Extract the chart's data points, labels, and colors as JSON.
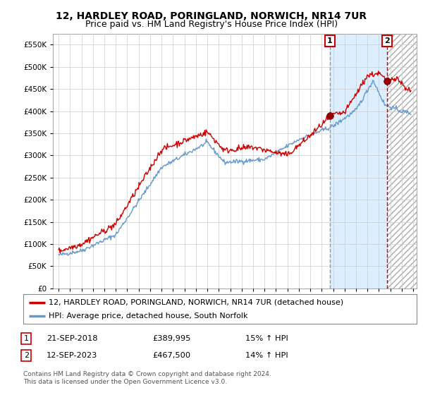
{
  "title": "12, HARDLEY ROAD, PORINGLAND, NORWICH, NR14 7UR",
  "subtitle": "Price paid vs. HM Land Registry's House Price Index (HPI)",
  "yticks": [
    0,
    50000,
    100000,
    150000,
    200000,
    250000,
    300000,
    350000,
    400000,
    450000,
    500000,
    550000
  ],
  "ylim": [
    0,
    575000
  ],
  "xlim_start": 1994.5,
  "xlim_end": 2026.3,
  "xticks": [
    1995,
    1996,
    1997,
    1998,
    1999,
    2000,
    2001,
    2002,
    2003,
    2004,
    2005,
    2006,
    2007,
    2008,
    2009,
    2010,
    2011,
    2012,
    2013,
    2014,
    2015,
    2016,
    2017,
    2018,
    2019,
    2020,
    2021,
    2022,
    2023,
    2024,
    2025,
    2026
  ],
  "background_color": "#ffffff",
  "grid_color": "#cccccc",
  "red_line_color": "#cc0000",
  "blue_line_color": "#6699cc",
  "shade_color": "#ddeeff",
  "sale1_x": 2018.72,
  "sale1_y": 389995,
  "sale1_label": "1",
  "sale1_date": "21-SEP-2018",
  "sale1_price": "£389,995",
  "sale1_hpi": "15% ↑ HPI",
  "sale2_x": 2023.7,
  "sale2_y": 467500,
  "sale2_label": "2",
  "sale2_date": "12-SEP-2023",
  "sale2_price": "£467,500",
  "sale2_hpi": "14% ↑ HPI",
  "legend_label1": "12, HARDLEY ROAD, PORINGLAND, NORWICH, NR14 7UR (detached house)",
  "legend_label2": "HPI: Average price, detached house, South Norfolk",
  "footer": "Contains HM Land Registry data © Crown copyright and database right 2024.\nThis data is licensed under the Open Government Licence v3.0.",
  "title_fontsize": 10,
  "subtitle_fontsize": 9,
  "tick_fontsize": 7.5,
  "legend_fontsize": 8
}
